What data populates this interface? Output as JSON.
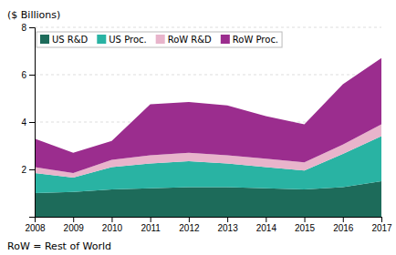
{
  "chart_data": {
    "type": "area",
    "stacked": true,
    "ylabel": "($ Billions)",
    "footnote": "RoW = Rest of World",
    "x": [
      2008,
      2009,
      2010,
      2011,
      2012,
      2013,
      2014,
      2015,
      2016,
      2017
    ],
    "series": [
      {
        "name": "US R&D",
        "color": "#1d6b5a",
        "values": [
          1.0,
          1.05,
          1.15,
          1.2,
          1.25,
          1.25,
          1.2,
          1.15,
          1.25,
          1.5
        ]
      },
      {
        "name": "US Proc.",
        "color": "#29b3a3",
        "values": [
          0.85,
          0.6,
          0.95,
          1.05,
          1.1,
          1.0,
          0.9,
          0.8,
          1.4,
          1.9
        ]
      },
      {
        "name": "RoW R&D",
        "color": "#e8b4cb",
        "values": [
          0.25,
          0.2,
          0.3,
          0.35,
          0.35,
          0.35,
          0.35,
          0.35,
          0.4,
          0.5
        ]
      },
      {
        "name": "RoW Proc.",
        "color": "#9b2d8e",
        "values": [
          1.2,
          0.85,
          0.8,
          2.15,
          2.15,
          2.1,
          1.8,
          1.6,
          2.55,
          2.8
        ]
      }
    ],
    "xlim": [
      2008,
      2017
    ],
    "xticks": [
      2008,
      2009,
      2010,
      2011,
      2012,
      2013,
      2014,
      2015,
      2016,
      2017
    ],
    "ylim": [
      0,
      8
    ],
    "yticks": [
      {
        "value": 0,
        "label": null
      },
      2,
      4,
      6,
      8
    ],
    "grid": true,
    "legend": "upper left"
  }
}
